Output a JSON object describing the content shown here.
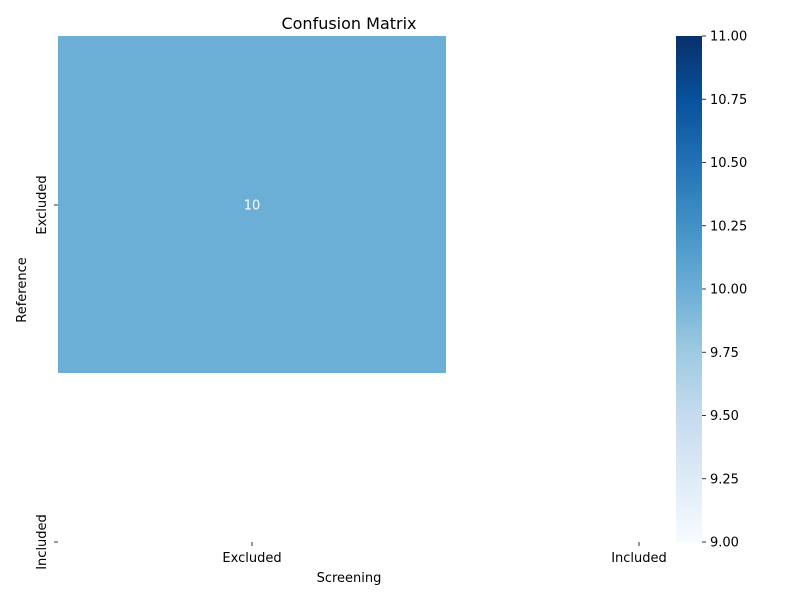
{
  "chart_data": {
    "type": "heatmap",
    "title": "Confusion Matrix",
    "xlabel": "Screening",
    "ylabel": "Reference",
    "x_categories": [
      "Excluded",
      "Included"
    ],
    "y_categories": [
      "Excluded",
      "Included"
    ],
    "cells": [
      {
        "row": "Excluded",
        "col": "Excluded",
        "value": 10,
        "label": "10",
        "color": "#6baed6"
      }
    ],
    "colorbar": {
      "range": [
        9.0,
        11.0
      ],
      "ticks": [
        "9.00",
        "9.25",
        "9.50",
        "9.75",
        "10.00",
        "10.25",
        "10.50",
        "10.75",
        "11.00"
      ],
      "tick_values": [
        9.0,
        9.25,
        9.5,
        9.75,
        10.0,
        10.25,
        10.5,
        10.75,
        11.0
      ],
      "colormap": "Blues",
      "colors": [
        "#f7fbff",
        "#deebf7",
        "#c6dbef",
        "#9ecae1",
        "#6baed6",
        "#4292c6",
        "#2171b5",
        "#08519c",
        "#08306b"
      ]
    },
    "annotation_color": "#ffffff"
  }
}
